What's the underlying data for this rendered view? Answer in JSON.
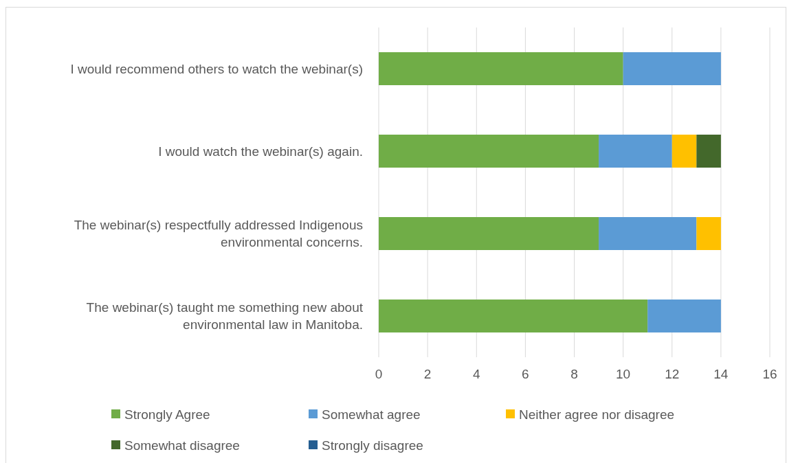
{
  "chart_data": {
    "type": "bar",
    "orientation": "horizontal",
    "stacked": true,
    "categories": [
      "I would recommend others to watch the webinar(s)",
      "I would watch the webinar(s) again.",
      "The webinar(s) respectfully addressed Indigenous environmental concerns.",
      "The webinar(s) taught me something new about environmental law in Manitoba."
    ],
    "series": [
      {
        "name": "Strongly Agree",
        "color": "#70ad47",
        "values": [
          10,
          9,
          9,
          11
        ]
      },
      {
        "name": "Somewhat agree",
        "color": "#5b9bd5",
        "values": [
          4,
          3,
          4,
          3
        ]
      },
      {
        "name": "Neither agree nor disagree",
        "color": "#ffc000",
        "values": [
          0,
          1,
          1,
          0
        ]
      },
      {
        "name": "Somewhat disagree",
        "color": "#43682b",
        "values": [
          0,
          1,
          0,
          0
        ]
      },
      {
        "name": "Strongly disagree",
        "color": "#255e91",
        "values": [
          0,
          0,
          0,
          0
        ]
      }
    ],
    "xlim": [
      0,
      16
    ],
    "xticks": [
      0,
      2,
      4,
      6,
      8,
      10,
      12,
      14,
      16
    ],
    "grid": "x",
    "legend": "bottom"
  }
}
